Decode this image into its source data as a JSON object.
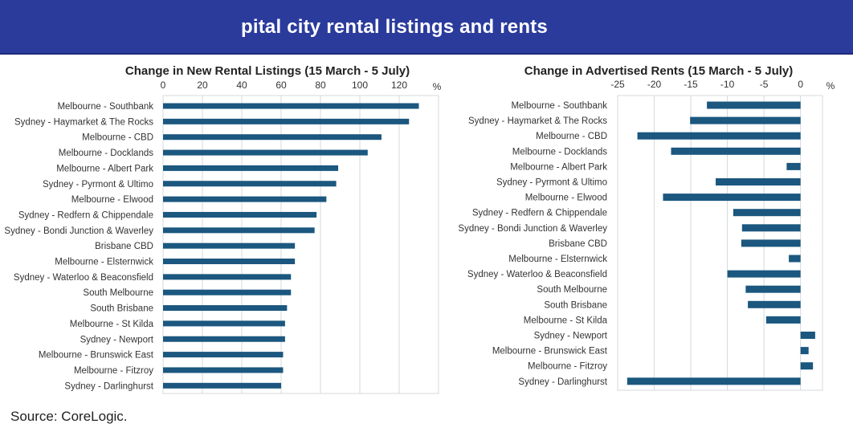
{
  "banner": {
    "title": "pital city rental listings and rents"
  },
  "source": "Source: CoreLogic.",
  "chart_data": [
    {
      "type": "bar",
      "orientation": "horizontal",
      "title": "Change in New Rental Listings (15 March - 5 July)",
      "unit_label": "%",
      "xlim": [
        0,
        140
      ],
      "ticks": [
        0,
        20,
        40,
        60,
        80,
        100,
        120
      ],
      "grid": true,
      "color": "#1b577f",
      "categories": [
        "Melbourne - Southbank",
        "Sydney - Haymarket & The Rocks",
        "Melbourne - CBD",
        "Melbourne - Docklands",
        "Melbourne - Albert Park",
        "Sydney - Pyrmont & Ultimo",
        "Melbourne - Elwood",
        "Sydney - Redfern & Chippendale",
        "Sydney - Bondi Junction & Waverley",
        "Brisbane CBD",
        "Melbourne - Elsternwick",
        "Sydney - Waterloo & Beaconsfield",
        "South Melbourne",
        "South Brisbane",
        "Melbourne - St Kilda",
        "Sydney - Newport",
        "Melbourne - Brunswick East",
        "Melbourne - Fitzroy",
        "Sydney - Darlinghurst"
      ],
      "values": [
        130,
        125,
        111,
        104,
        89,
        88,
        83,
        78,
        77,
        67,
        67,
        65,
        65,
        63,
        62,
        62,
        61,
        61,
        60
      ]
    },
    {
      "type": "bar",
      "orientation": "horizontal",
      "title": "Change in Advertised Rents (15 March - 5 July)",
      "unit_label": "%",
      "xlim": [
        -25,
        3
      ],
      "ticks": [
        -25,
        -20,
        -15,
        -10,
        -5,
        0
      ],
      "grid": true,
      "color": "#1b577f",
      "categories": [
        "Melbourne - Southbank",
        "Sydney - Haymarket & The Rocks",
        "Melbourne - CBD",
        "Melbourne - Docklands",
        "Melbourne - Albert Park",
        "Sydney - Pyrmont & Ultimo",
        "Melbourne - Elwood",
        "Sydney - Redfern & Chippendale",
        "Sydney - Bondi Junction & Waverley",
        "Brisbane CBD",
        "Melbourne - Elsternwick",
        "Sydney - Waterloo & Beaconsfield",
        "South Melbourne",
        "South Brisbane",
        "Melbourne - St Kilda",
        "Sydney - Newport",
        "Melbourne - Brunswick East",
        "Melbourne - Fitzroy",
        "Sydney - Darlinghurst"
      ],
      "values": [
        -12.8,
        -15.1,
        -22.3,
        -17.7,
        -1.9,
        -11.6,
        -18.8,
        -9.2,
        -8.0,
        -8.1,
        -1.6,
        -10.0,
        -7.5,
        -7.2,
        -4.7,
        2.0,
        1.1,
        1.7,
        -23.7
      ]
    }
  ]
}
